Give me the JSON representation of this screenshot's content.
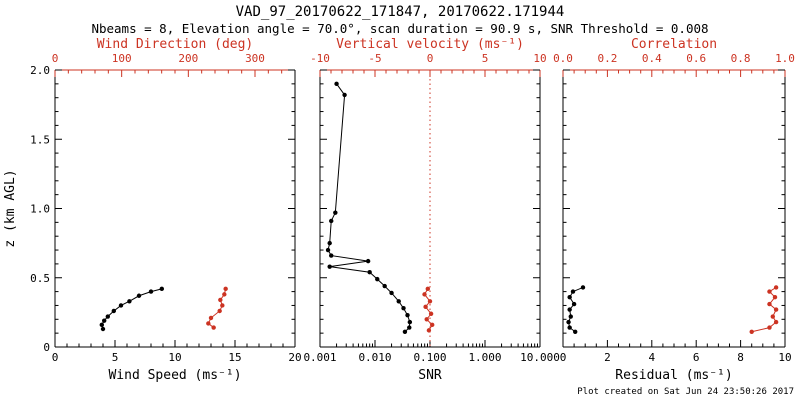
{
  "page": {
    "title": "VAD_97_20170622_171847, 20170622.171944",
    "subtitle": "Nbeams = 8, Elevation angle = 70.0°, scan duration = 90.9 s, SNR Threshold = 0.008",
    "footer": "Plot created on Sat Jun 24 23:50:26 2017"
  },
  "colors": {
    "red": "#cc3322",
    "black": "#000000",
    "background": "#ffffff"
  },
  "y_axis": {
    "label": "z (km AGL)",
    "range": [
      0,
      2
    ],
    "ticks": [
      0,
      0.5,
      1,
      1.5,
      2
    ],
    "tick_labels": [
      "0",
      "0.5",
      "1.0",
      "1.5",
      "2.0"
    ],
    "minor_step": 0.1
  },
  "chart_data": [
    {
      "name": "wind",
      "type": "line",
      "bottom_axis": {
        "label": "Wind Speed (ms⁻¹)",
        "scale": "linear",
        "range": [
          0,
          20
        ],
        "ticks": [
          0,
          5,
          10,
          15,
          20
        ],
        "tick_labels": [
          "0",
          "5",
          "10",
          "15",
          "20"
        ],
        "minor_step": 1
      },
      "top_axis": {
        "label": "Wind Direction (deg)",
        "scale": "linear",
        "range": [
          0,
          360
        ],
        "ticks": [
          0,
          100,
          200,
          300
        ],
        "tick_labels": [
          "0",
          "100",
          "200",
          "300"
        ],
        "minor_step": 20
      },
      "series": [
        {
          "name": "wind-speed",
          "axis": "bottom",
          "color": "black",
          "x": [
            4.0,
            3.9,
            4.1,
            4.4,
            4.9,
            5.5,
            6.2,
            7.0,
            8.0,
            8.9
          ],
          "z": [
            0.13,
            0.16,
            0.19,
            0.22,
            0.26,
            0.3,
            0.33,
            0.37,
            0.4,
            0.42
          ]
        },
        {
          "name": "wind-direction",
          "axis": "top",
          "color": "red",
          "x": [
            238,
            230,
            234,
            247,
            251,
            248,
            254,
            256
          ],
          "z": [
            0.14,
            0.17,
            0.21,
            0.26,
            0.3,
            0.34,
            0.38,
            0.42
          ]
        }
      ]
    },
    {
      "name": "snr",
      "type": "line",
      "bottom_axis": {
        "label": "SNR",
        "scale": "log",
        "range": [
          0.001,
          10
        ],
        "ticks": [
          0.001,
          0.01,
          0.1,
          1,
          10
        ],
        "tick_labels": [
          "0.001",
          "0.010",
          "0.100",
          "1.000",
          "10.000"
        ]
      },
      "top_axis": {
        "label": "Vertical velocity (ms⁻¹)",
        "scale": "linear",
        "range": [
          -10,
          10
        ],
        "ticks": [
          -10,
          -5,
          0,
          5,
          10
        ],
        "tick_labels": [
          "-10",
          "-5",
          "0",
          "5",
          "10"
        ],
        "minor_step": 1
      },
      "zero_line": {
        "axis": "top",
        "value": 0,
        "color": "red",
        "style": "dotted"
      },
      "series": [
        {
          "name": "snr",
          "axis": "bottom",
          "color": "black",
          "x": [
            0.002,
            0.0028,
            0.0019,
            0.0016,
            0.0015,
            0.0014,
            0.0016,
            0.0075,
            0.0015,
            0.008,
            0.011,
            0.015,
            0.02,
            0.027,
            0.033,
            0.039,
            0.043,
            0.042,
            0.035
          ],
          "z": [
            1.9,
            1.82,
            0.97,
            0.91,
            0.75,
            0.7,
            0.66,
            0.62,
            0.58,
            0.54,
            0.49,
            0.44,
            0.39,
            0.33,
            0.28,
            0.23,
            0.18,
            0.14,
            0.11
          ]
        },
        {
          "name": "vertical-velocity",
          "axis": "top",
          "color": "red",
          "x": [
            -0.2,
            -0.5,
            0.0,
            -0.4,
            0.1,
            -0.3,
            0.2,
            -0.1
          ],
          "z": [
            0.42,
            0.38,
            0.33,
            0.29,
            0.24,
            0.2,
            0.16,
            0.12
          ]
        }
      ]
    },
    {
      "name": "residual",
      "type": "line",
      "bottom_axis": {
        "label": "Residual (ms⁻¹)",
        "scale": "linear",
        "range": [
          0,
          10
        ],
        "ticks": [
          0,
          2,
          4,
          6,
          8,
          10
        ],
        "tick_labels": [
          "0",
          "2",
          "4",
          "6",
          "8",
          "10"
        ],
        "minor_step": 0.5
      },
      "top_axis": {
        "label": "Correlation",
        "scale": "linear",
        "range": [
          0,
          1
        ],
        "ticks": [
          0,
          0.2,
          0.4,
          0.6,
          0.8,
          1.0
        ],
        "tick_labels": [
          "0.0",
          "0.2",
          "0.4",
          "0.6",
          "0.8",
          "1.0"
        ],
        "minor_step": 0.05
      },
      "series": [
        {
          "name": "residual",
          "axis": "bottom",
          "color": "black",
          "x": [
            0.9,
            0.45,
            0.3,
            0.5,
            0.3,
            0.35,
            0.25,
            0.3,
            0.55
          ],
          "z": [
            0.43,
            0.4,
            0.36,
            0.31,
            0.27,
            0.22,
            0.18,
            0.14,
            0.11
          ]
        },
        {
          "name": "correlation",
          "axis": "top",
          "color": "red",
          "x": [
            0.96,
            0.93,
            0.955,
            0.93,
            0.96,
            0.945,
            0.96,
            0.93,
            0.85
          ],
          "z": [
            0.43,
            0.4,
            0.36,
            0.31,
            0.27,
            0.22,
            0.18,
            0.14,
            0.11
          ]
        }
      ]
    }
  ]
}
